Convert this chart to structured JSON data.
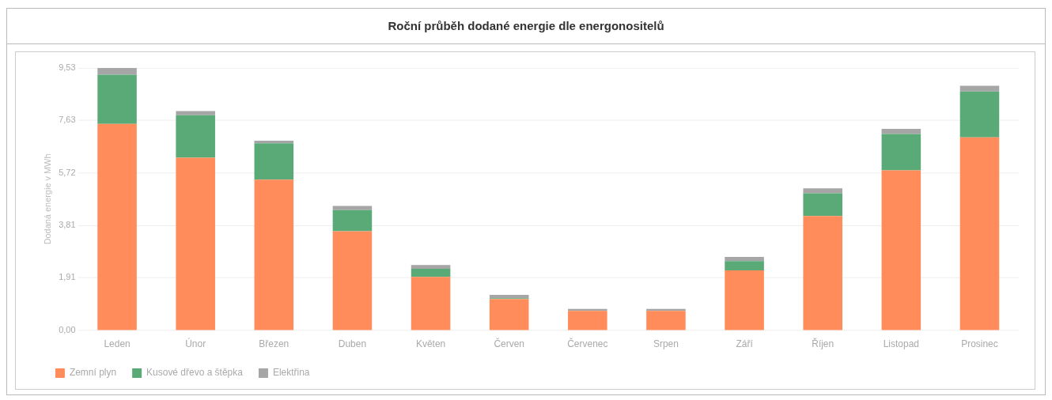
{
  "chart_data": {
    "type": "bar",
    "title": "Roční průběh dodané energie dle energonositelů",
    "ylabel": "Dodaná energie v MWh",
    "categories": [
      "Leden",
      "Únor",
      "Březen",
      "Duben",
      "Květen",
      "Červen",
      "Červenec",
      "Srpen",
      "Září",
      "Říjen",
      "Listopad",
      "Prosinec"
    ],
    "series": [
      {
        "name": "Zemní plyn",
        "color": "#ff8c5a",
        "values": [
          7.5,
          6.27,
          5.47,
          3.6,
          1.94,
          1.14,
          0.71,
          0.71,
          2.18,
          4.15,
          5.81,
          7.01
        ]
      },
      {
        "name": "Kusové dřevo a štěpka",
        "color": "#5aaa78",
        "values": [
          1.78,
          1.54,
          1.32,
          0.77,
          0.3,
          0.03,
          null,
          null,
          0.34,
          0.83,
          1.32,
          1.66
        ]
      },
      {
        "name": "Elektřina",
        "color": "#a6a6a6",
        "values": [
          0.25,
          0.15,
          0.1,
          0.15,
          0.13,
          0.12,
          0.07,
          0.07,
          0.15,
          0.18,
          0.19,
          0.21
        ]
      }
    ],
    "stacked": true,
    "ylim": [
      0,
      9.53
    ],
    "yticks": [
      {
        "value": 0,
        "label": "0,00"
      },
      {
        "value": 1.91,
        "label": "1,91"
      },
      {
        "value": 3.81,
        "label": "3,81"
      },
      {
        "value": 5.72,
        "label": "5,72"
      },
      {
        "value": 7.63,
        "label": "7,63"
      },
      {
        "value": 9.53,
        "label": "9,53"
      }
    ],
    "grid": "y",
    "legend": "bottom"
  }
}
